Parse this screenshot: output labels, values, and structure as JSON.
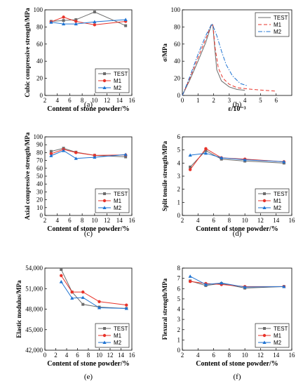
{
  "colors": {
    "TEST": "#6b6b6b",
    "M1": "#e8332a",
    "M2": "#1e73d2"
  },
  "chart_data": [
    {
      "panel": "(a)",
      "type": "line",
      "xlabel": "Content of stone powder/%",
      "ylabel": "Cubic compressive strength/MPa",
      "xlim": [
        2,
        16
      ],
      "ylim": [
        0,
        100
      ],
      "xticks": [
        2,
        4,
        6,
        8,
        10,
        12,
        14,
        16
      ],
      "yticks": [
        0,
        20,
        40,
        60,
        80,
        100
      ],
      "legend": "bottom-right",
      "x": [
        3,
        5,
        7,
        10,
        15
      ],
      "series": [
        {
          "name": "TEST",
          "marker": "square",
          "values": [
            86.5,
            87.5,
            88.5,
            97.5,
            81.5
          ]
        },
        {
          "name": "M1",
          "marker": "circle",
          "values": [
            86,
            91.5,
            86.5,
            82.5,
            86.5
          ]
        },
        {
          "name": "M2",
          "marker": "triangle",
          "values": [
            85.5,
            83.5,
            83.5,
            86,
            88.5
          ]
        }
      ]
    },
    {
      "panel": "(b)",
      "type": "line",
      "xlabel": "ε/10⁻³",
      "ylabel": "σ/MPa",
      "xlim": [
        0,
        7
      ],
      "ylim": [
        0,
        100
      ],
      "xticks": [
        0,
        1,
        2,
        3,
        4,
        5,
        6
      ],
      "yticks": [
        0,
        20,
        40,
        60,
        80,
        100
      ],
      "legend": "top-right",
      "series": [
        {
          "name": "TEST",
          "style": "solid",
          "points": [
            [
              0,
              0
            ],
            [
              0.5,
              19
            ],
            [
              1,
              40
            ],
            [
              1.5,
              62
            ],
            [
              1.85,
              82
            ],
            [
              1.95,
              82
            ],
            [
              2.05,
              60
            ],
            [
              2.2,
              30
            ],
            [
              2.5,
              17
            ],
            [
              3,
              10
            ],
            [
              3.5,
              7
            ],
            [
              4,
              6
            ]
          ]
        },
        {
          "name": "M1",
          "style": "dashed",
          "points": [
            [
              0,
              0
            ],
            [
              0.5,
              21
            ],
            [
              1,
              44
            ],
            [
              1.5,
              66
            ],
            [
              1.85,
              83
            ],
            [
              1.95,
              83
            ],
            [
              2.1,
              55
            ],
            [
              2.3,
              32
            ],
            [
              2.6,
              20
            ],
            [
              3,
              13
            ],
            [
              3.5,
              9
            ],
            [
              4.5,
              7
            ],
            [
              6,
              5
            ]
          ]
        },
        {
          "name": "M2",
          "style": "dashdot",
          "points": [
            [
              0,
              0
            ],
            [
              0.5,
              23
            ],
            [
              1,
              48
            ],
            [
              1.5,
              70
            ],
            [
              1.9,
              84
            ],
            [
              2.2,
              70
            ],
            [
              2.5,
              52
            ],
            [
              2.8,
              36
            ],
            [
              3.2,
              23
            ],
            [
              3.7,
              14
            ],
            [
              4.2,
              11
            ]
          ]
        }
      ]
    },
    {
      "panel": "(c)",
      "type": "line",
      "xlabel": "Content of stone powder/%",
      "ylabel": "Axial compressive strength/MPa",
      "xlim": [
        2,
        16
      ],
      "ylim": [
        0,
        100
      ],
      "xticks": [
        2,
        4,
        6,
        8,
        10,
        12,
        14,
        16
      ],
      "yticks": [
        0,
        10,
        20,
        30,
        40,
        50,
        60,
        70,
        80,
        90,
        100
      ],
      "legend": "bottom-right",
      "x": [
        3,
        5,
        7,
        10,
        15
      ],
      "series": [
        {
          "name": "TEST",
          "marker": "square",
          "values": [
            81.5,
            85.5,
            80.5,
            76.5,
            74.5
          ]
        },
        {
          "name": "M1",
          "marker": "circle",
          "values": [
            78.5,
            84,
            80,
            76.5,
            77
          ]
        },
        {
          "name": "M2",
          "marker": "triangle",
          "values": [
            76,
            82.5,
            72.5,
            74,
            77.5
          ]
        }
      ]
    },
    {
      "panel": "(d)",
      "type": "line",
      "xlabel": "Content of stone powder/%",
      "ylabel": "Split tensile strength/MPa",
      "xlim": [
        2,
        16
      ],
      "ylim": [
        0,
        6
      ],
      "xticks": [
        2,
        4,
        6,
        8,
        10,
        12,
        14,
        16
      ],
      "yticks": [
        0,
        1,
        2,
        3,
        4,
        5,
        6
      ],
      "legend": "bottom-right",
      "x": [
        3,
        5,
        7,
        10,
        15
      ],
      "series": [
        {
          "name": "TEST",
          "marker": "square",
          "values": [
            3.7,
            4.95,
            4.3,
            4.15,
            4.0
          ]
        },
        {
          "name": "M1",
          "marker": "circle",
          "values": [
            3.5,
            5.1,
            4.4,
            4.3,
            4.1
          ]
        },
        {
          "name": "M2",
          "marker": "triangle",
          "values": [
            4.6,
            4.75,
            4.4,
            4.25,
            4.1
          ]
        }
      ]
    },
    {
      "panel": "(e)",
      "type": "line",
      "xlabel": "Content of stone powder/%",
      "ylabel": "Elastic modulus/MPa",
      "xlim": [
        0,
        16
      ],
      "ylim": [
        42000,
        54000
      ],
      "xticks": [
        0,
        2,
        4,
        6,
        8,
        10,
        12,
        14,
        16
      ],
      "yticks": [
        42000,
        45000,
        48000,
        51000,
        54000
      ],
      "ytick_labels": [
        "42,000",
        "45,000",
        "48,000",
        "51,000",
        "54,000"
      ],
      "legend": "bottom-right",
      "x": [
        3,
        5,
        7,
        10,
        15
      ],
      "series": [
        {
          "name": "TEST",
          "marker": "square",
          "values": [
            53800,
            50500,
            48700,
            48300,
            48100
          ]
        },
        {
          "name": "M1",
          "marker": "circle",
          "values": [
            52900,
            50500,
            50500,
            49100,
            48600
          ]
        },
        {
          "name": "M2",
          "marker": "triangle",
          "values": [
            52000,
            49600,
            49700,
            48200,
            48100
          ]
        }
      ]
    },
    {
      "panel": "(f)",
      "type": "line",
      "xlabel": "Content of stone powder/%",
      "ylabel": "Flexural strength/MPa",
      "xlim": [
        2,
        16
      ],
      "ylim": [
        0,
        8
      ],
      "xticks": [
        2,
        4,
        6,
        8,
        10,
        12,
        14,
        16
      ],
      "yticks": [
        0,
        1,
        2,
        3,
        4,
        5,
        6,
        7,
        8
      ],
      "legend": "bottom-right",
      "x": [
        3,
        5,
        7,
        10,
        15
      ],
      "series": [
        {
          "name": "TEST",
          "marker": "square",
          "values": [
            6.75,
            6.3,
            6.5,
            6.05,
            6.2
          ]
        },
        {
          "name": "M1",
          "marker": "circle",
          "values": [
            6.7,
            6.5,
            6.4,
            6.2,
            6.2
          ]
        },
        {
          "name": "M2",
          "marker": "triangle",
          "values": [
            7.2,
            6.4,
            6.55,
            6.15,
            6.2
          ]
        }
      ]
    }
  ]
}
